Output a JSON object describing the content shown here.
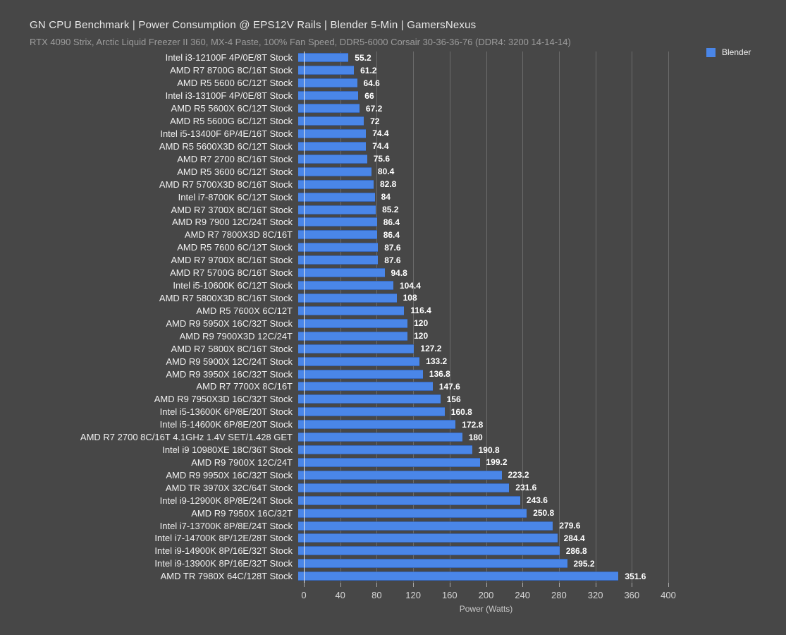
{
  "title": "GN CPU Benchmark | Power Consumption @ EPS12V Rails | Blender 5-Min | GamersNexus",
  "subtitle": "RTX 4090 Strix, Arctic Liquid Freezer II 360, MX-4 Paste, 100% Fan Speed, DDR5-6000 Corsair 30-36-36-76 (DDR4: 3200 14-14-14)",
  "legend": {
    "label": "Blender",
    "color": "#4a86e8",
    "position": "top-right"
  },
  "colors": {
    "background": "#474747",
    "bar": "#4a86e8",
    "gridline": "#6b6b6b",
    "zero_axis": "#ededed",
    "title_text": "#e9e9e9",
    "subtitle_text": "#9c9c9c",
    "category_text": "#f0f0f0",
    "value_text": "#ffffff",
    "tick_text": "#d6d6d6"
  },
  "chart_data": {
    "type": "bar",
    "orientation": "horizontal",
    "series_name": "Blender",
    "title": "GN CPU Benchmark | Power Consumption @ EPS12V Rails | Blender 5-Min | GamersNexus",
    "subtitle": "RTX 4090 Strix, Arctic Liquid Freezer II 360, MX-4 Paste, 100% Fan Speed, DDR5-6000 Corsair 30-36-36-76 (DDR4: 3200 14-14-14)",
    "xlabel": "Power (Watts)",
    "ylabel": "",
    "xlim": [
      0,
      400
    ],
    "xticks": [
      0,
      40,
      80,
      120,
      160,
      200,
      240,
      280,
      320,
      360,
      400
    ],
    "grid": true,
    "legend_position": "top-right",
    "categories": [
      "Intel i3-12100F 4P/0E/8T Stock",
      "AMD R7 8700G 8C/16T Stock",
      "AMD R5 5600 6C/12T Stock",
      "Intel i3-13100F 4P/0E/8T Stock",
      "AMD R5 5600X 6C/12T Stock",
      "AMD R5 5600G 6C/12T Stock",
      "Intel i5-13400F 6P/4E/16T Stock",
      "AMD R5 5600X3D 6C/12T Stock",
      "AMD R7 2700 8C/16T Stock",
      "AMD R5 3600 6C/12T Stock",
      "AMD R7 5700X3D 8C/16T Stock",
      "Intel i7-8700K 6C/12T Stock",
      "AMD R7 3700X 8C/16T Stock",
      "AMD R9 7900 12C/24T Stock",
      "AMD R7 7800X3D 8C/16T",
      "AMD R5 7600 6C/12T Stock",
      "AMD R7 9700X 8C/16T Stock",
      "AMD R7 5700G 8C/16T Stock",
      "Intel i5-10600K 6C/12T Stock",
      "AMD R7 5800X3D 8C/16T Stock",
      "AMD R5 7600X 6C/12T",
      "AMD R9 5950X 16C/32T Stock",
      "AMD R9 7900X3D 12C/24T",
      "AMD R7 5800X 8C/16T Stock",
      "AMD R9 5900X 12C/24T Stock",
      "AMD R9 3950X 16C/32T Stock",
      "AMD R7 7700X 8C/16T",
      "AMD R9 7950X3D 16C/32T Stock",
      "Intel i5-13600K 6P/8E/20T Stock",
      "Intel i5-14600K 6P/8E/20T Stock",
      "AMD R7 2700 8C/16T 4.1GHz 1.4V SET/1.428 GET",
      "Intel i9 10980XE 18C/36T Stock",
      "AMD R9 7900X 12C/24T",
      "AMD R9 9950X 16C/32T Stock",
      "AMD TR 3970X 32C/64T Stock",
      "Intel i9-12900K 8P/8E/24T Stock",
      "AMD R9 7950X 16C/32T",
      "Intel i7-13700K 8P/8E/24T Stock",
      "Intel i7-14700K 8P/12E/28T Stock",
      "Intel i9-14900K 8P/16E/32T Stock",
      "Intel i9-13900K 8P/16E/32T Stock",
      "AMD TR 7980X 64C/128T Stock"
    ],
    "values": [
      55.2,
      61.2,
      64.6,
      66,
      67.2,
      72,
      74.4,
      74.4,
      75.6,
      80.4,
      82.8,
      84,
      85.2,
      86.4,
      86.4,
      87.6,
      87.6,
      94.8,
      104.4,
      108,
      116.4,
      120,
      120,
      127.2,
      133.2,
      136.8,
      147.6,
      156,
      160.8,
      172.8,
      180,
      190.8,
      199.2,
      223.2,
      231.6,
      243.6,
      250.8,
      279.6,
      284.4,
      286.8,
      295.2,
      351.6
    ]
  }
}
